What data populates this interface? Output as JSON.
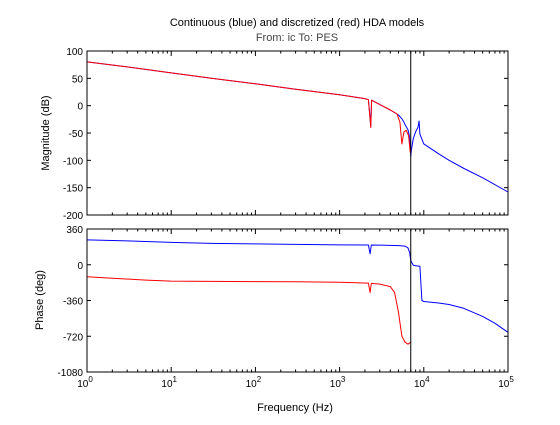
{
  "figure": {
    "title": "Continuous (blue) and discretized (red) HDA models",
    "subtitle": "From: ic  To: PES",
    "xlabel": "Frequency  (Hz)"
  },
  "chart_data": [
    {
      "type": "line",
      "title": "Continuous (blue) and discretized (red) HDA models",
      "subtitle": "From: ic  To: PES",
      "xlabel": "",
      "ylabel": "Magnitude (dB)",
      "xscale": "log",
      "xlim": [
        1,
        100000
      ],
      "ylim": [
        -200,
        100
      ],
      "yticks": [
        100,
        50,
        0,
        -50,
        -100,
        -150,
        -200
      ],
      "xticks": [
        1,
        10,
        100,
        1000,
        10000,
        100000
      ],
      "xtick_labels": [],
      "grid": false,
      "nyquist_line_x": 7000,
      "series": [
        {
          "color": "#0000ff",
          "points": [
            [
              1,
              80
            ],
            [
              3,
              71
            ],
            [
              10,
              60
            ],
            [
              30,
              50
            ],
            [
              100,
              40
            ],
            [
              300,
              30
            ],
            [
              1000,
              20
            ],
            [
              2000,
              13
            ],
            [
              2200,
              11
            ],
            [
              2350,
              -38
            ],
            [
              2400,
              10
            ],
            [
              3000,
              2
            ],
            [
              4000,
              -8
            ],
            [
              5000,
              -17
            ],
            [
              5500,
              -24
            ],
            [
              5800,
              -30
            ],
            [
              6000,
              -35
            ],
            [
              6500,
              -44
            ],
            [
              6800,
              -58
            ],
            [
              7000,
              -92
            ],
            [
              7100,
              -82
            ],
            [
              7500,
              -60
            ],
            [
              8000,
              -48
            ],
            [
              8500,
              -40
            ],
            [
              8800,
              -28
            ],
            [
              9000,
              -52
            ],
            [
              10000,
              -70
            ],
            [
              15000,
              -88
            ],
            [
              20000,
              -100
            ],
            [
              30000,
              -115
            ],
            [
              50000,
              -132
            ],
            [
              100000,
              -158
            ]
          ]
        },
        {
          "color": "#ff0000",
          "points": [
            [
              1,
              80
            ],
            [
              3,
              71
            ],
            [
              10,
              60
            ],
            [
              30,
              50
            ],
            [
              100,
              40
            ],
            [
              300,
              30
            ],
            [
              1000,
              20
            ],
            [
              2000,
              13
            ],
            [
              2200,
              11
            ],
            [
              2350,
              -40
            ],
            [
              2400,
              10
            ],
            [
              3000,
              2
            ],
            [
              4000,
              -8
            ],
            [
              4800,
              -15
            ],
            [
              5200,
              -30
            ],
            [
              5500,
              -70
            ],
            [
              5800,
              -48
            ],
            [
              6200,
              -45
            ],
            [
              6600,
              -55
            ],
            [
              6900,
              -85
            ],
            [
              7000,
              -85
            ]
          ]
        }
      ]
    },
    {
      "type": "line",
      "title": "",
      "xlabel": "Frequency  (Hz)",
      "ylabel": "Phase (deg)",
      "xscale": "log",
      "xlim": [
        1,
        100000
      ],
      "ylim": [
        -1080,
        360
      ],
      "yticks": [
        360,
        0,
        -360,
        -720,
        -1080
      ],
      "xticks": [
        1,
        10,
        100,
        1000,
        10000,
        100000
      ],
      "xtick_labels": [
        "10^0",
        "10^1",
        "10^2",
        "10^3",
        "10^4",
        "10^5"
      ],
      "grid": false,
      "nyquist_line_x": 7000,
      "series": [
        {
          "color": "#0000ff",
          "points": [
            [
              1,
              250
            ],
            [
              3,
              240
            ],
            [
              10,
              225
            ],
            [
              30,
              215
            ],
            [
              100,
              210
            ],
            [
              300,
              205
            ],
            [
              1000,
              200
            ],
            [
              2200,
              199
            ],
            [
              2300,
              110
            ],
            [
              2380,
              199
            ],
            [
              3000,
              198
            ],
            [
              5000,
              193
            ],
            [
              6000,
              188
            ],
            [
              6500,
              170
            ],
            [
              6800,
              120
            ],
            [
              7000,
              40
            ],
            [
              7500,
              -5
            ],
            [
              8000,
              -10
            ],
            [
              9000,
              -15
            ],
            [
              9500,
              -360
            ],
            [
              10000,
              -370
            ],
            [
              15000,
              -385
            ],
            [
              20000,
              -400
            ],
            [
              30000,
              -440
            ],
            [
              50000,
              -520
            ],
            [
              70000,
              -590
            ],
            [
              100000,
              -680
            ]
          ]
        },
        {
          "color": "#ff0000",
          "points": [
            [
              1,
              -120
            ],
            [
              2,
              -135
            ],
            [
              5,
              -155
            ],
            [
              10,
              -165
            ],
            [
              30,
              -168
            ],
            [
              100,
              -170
            ],
            [
              300,
              -172
            ],
            [
              1000,
              -176
            ],
            [
              2200,
              -185
            ],
            [
              2300,
              -280
            ],
            [
              2380,
              -188
            ],
            [
              3000,
              -195
            ],
            [
              4000,
              -220
            ],
            [
              4500,
              -280
            ],
            [
              5000,
              -480
            ],
            [
              5500,
              -720
            ],
            [
              6000,
              -780
            ],
            [
              6500,
              -800
            ],
            [
              7000,
              -780
            ]
          ]
        }
      ]
    }
  ]
}
